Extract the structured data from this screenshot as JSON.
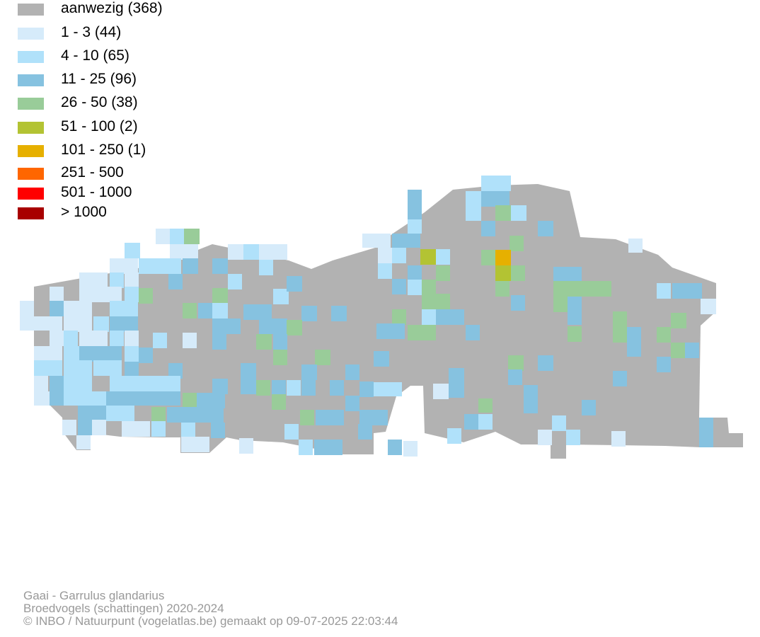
{
  "legend": {
    "items": [
      {
        "label": "aanwezig (368)",
        "color": "#b2b2b2"
      },
      {
        "label": "1 - 3 (44)",
        "color": "#d6ebfa"
      },
      {
        "label": "4 - 10 (65)",
        "color": "#b0e1fa"
      },
      {
        "label": "11 - 25 (96)",
        "color": "#86c2e0"
      },
      {
        "label": "26 - 50 (38)",
        "color": "#99cc99"
      },
      {
        "label": "51 - 100 (2)",
        "color": "#b3c333"
      },
      {
        "label": "101 - 250 (1)",
        "color": "#e6b000"
      },
      {
        "label": "251 - 500",
        "color": "#ff6600"
      },
      {
        "label": "501 - 1000",
        "color": "#ff0000"
      },
      {
        "label": "> 1000",
        "color": "#a80000"
      }
    ]
  },
  "caption": {
    "species": "Gaai - Garrulus glandarius",
    "dataset": "Broedvogels (schattingen) 2020-2024",
    "credit": "© INBO / Natuurpunt (vogelatlas.be) gemaakt op 09-07-2025 22:03:44"
  }
}
